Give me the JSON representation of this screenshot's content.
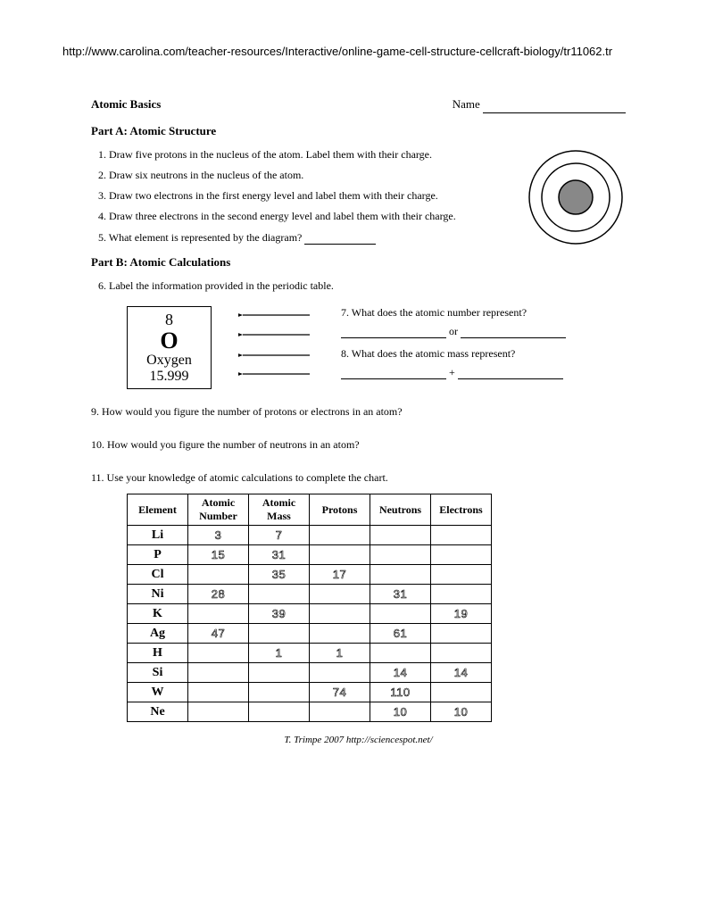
{
  "url": "http://www.carolina.com/teacher-resources/Interactive/online-game-cell-structure-cellcraft-biology/tr11062.tr",
  "header": {
    "title": "Atomic Basics",
    "name_label": "Name"
  },
  "partA": {
    "heading": "Part A:  Atomic Structure",
    "questions": [
      "1.  Draw five protons in the nucleus of the atom.  Label them with their charge.",
      "2.  Draw six neutrons in the nucleus of the atom.",
      "3.  Draw two electrons in the first energy level and label them with their charge.",
      "4. Draw three electrons in the second energy level and label them with their charge.",
      "5.  What element is represented by the diagram?"
    ]
  },
  "atom_diagram": {
    "outer_radius": 52,
    "middle_radius": 38,
    "inner_radius": 19,
    "inner_fill": "#888888",
    "stroke": "#000000",
    "background": "#ffffff"
  },
  "partB": {
    "heading": "Part B:  Atomic Calculations",
    "q6": "6.  Label the information provided in the periodic table.",
    "element_box": {
      "number": "8",
      "symbol": "O",
      "name": "Oxygen",
      "mass": "15.999"
    },
    "q7": "7. What does the atomic number represent?",
    "q7_joiner": " or ",
    "q8": "8. What does the atomic mass represent?",
    "q8_joiner": " + ",
    "q9": "9. How would you figure the number of protons or electrons in an atom?",
    "q10": "10. How would you figure the number of neutrons in an atom?",
    "q11": "11.  Use your knowledge of atomic calculations to complete the chart."
  },
  "chart": {
    "headers": [
      "Element",
      "Atomic Number",
      "Atomic Mass",
      "Protons",
      "Neutrons",
      "Electrons"
    ],
    "rows": [
      {
        "el": "Li",
        "num": "3",
        "mass": "7",
        "p": "",
        "n": "",
        "e": ""
      },
      {
        "el": "P",
        "num": "15",
        "mass": "31",
        "p": "",
        "n": "",
        "e": ""
      },
      {
        "el": "Cl",
        "num": "",
        "mass": "35",
        "p": "17",
        "n": "",
        "e": ""
      },
      {
        "el": "Ni",
        "num": "28",
        "mass": "",
        "p": "",
        "n": "31",
        "e": ""
      },
      {
        "el": "K",
        "num": "",
        "mass": "39",
        "p": "",
        "n": "",
        "e": "19"
      },
      {
        "el": "Ag",
        "num": "47",
        "mass": "",
        "p": "",
        "n": "61",
        "e": ""
      },
      {
        "el": "H",
        "num": "",
        "mass": "1",
        "p": "1",
        "n": "",
        "e": ""
      },
      {
        "el": "Si",
        "num": "",
        "mass": "",
        "p": "",
        "n": "14",
        "e": "14"
      },
      {
        "el": "W",
        "num": "",
        "mass": "",
        "p": "74",
        "n": "110",
        "e": ""
      },
      {
        "el": "Ne",
        "num": "",
        "mass": "",
        "p": "",
        "n": "10",
        "e": "10"
      }
    ]
  },
  "footer": "T. Trimpe 2007   http://sciencespot.net/"
}
